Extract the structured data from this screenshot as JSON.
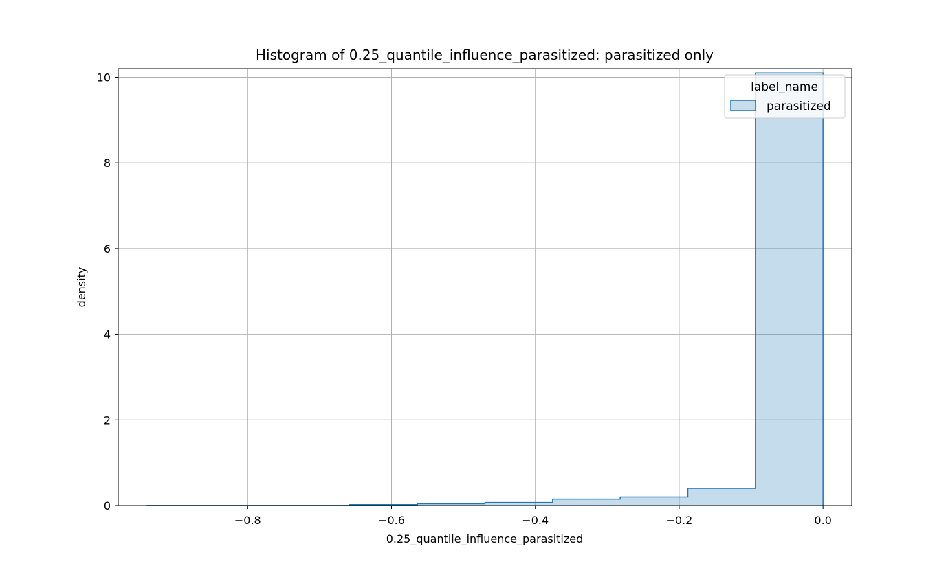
{
  "chart_data": {
    "type": "bar",
    "title": "Histogram of 0.25_quantile_influence_parasitized: parasitized only",
    "xlabel": "0.25_quantile_influence_parasitized",
    "ylabel": "density",
    "xlim": [
      -0.98,
      0.04
    ],
    "ylim": [
      0,
      10.2
    ],
    "xticks": [
      -0.8,
      -0.6,
      -0.4,
      -0.2,
      0.0
    ],
    "xtick_labels": [
      "−0.8",
      "−0.6",
      "−0.4",
      "−0.2",
      "0.0"
    ],
    "yticks": [
      0,
      2,
      4,
      6,
      8,
      10
    ],
    "ytick_labels": [
      "0",
      "2",
      "4",
      "6",
      "8",
      "10"
    ],
    "grid": true,
    "legend": {
      "title": "label_name",
      "placement": "top-right"
    },
    "series": [
      {
        "name": "parasitized",
        "color": "#1f77b4",
        "bins": [
          {
            "x0": -0.94,
            "x1": -0.846,
            "y": 0.003
          },
          {
            "x0": -0.846,
            "x1": -0.752,
            "y": 0.003
          },
          {
            "x0": -0.752,
            "x1": -0.658,
            "y": 0.003
          },
          {
            "x0": -0.658,
            "x1": -0.564,
            "y": 0.02
          },
          {
            "x0": -0.564,
            "x1": -0.47,
            "y": 0.04
          },
          {
            "x0": -0.47,
            "x1": -0.376,
            "y": 0.07
          },
          {
            "x0": -0.376,
            "x1": -0.282,
            "y": 0.15
          },
          {
            "x0": -0.282,
            "x1": -0.188,
            "y": 0.2
          },
          {
            "x0": -0.188,
            "x1": -0.094,
            "y": 0.4
          },
          {
            "x0": -0.094,
            "x1": 0.0,
            "y": 10.1
          }
        ]
      }
    ]
  }
}
